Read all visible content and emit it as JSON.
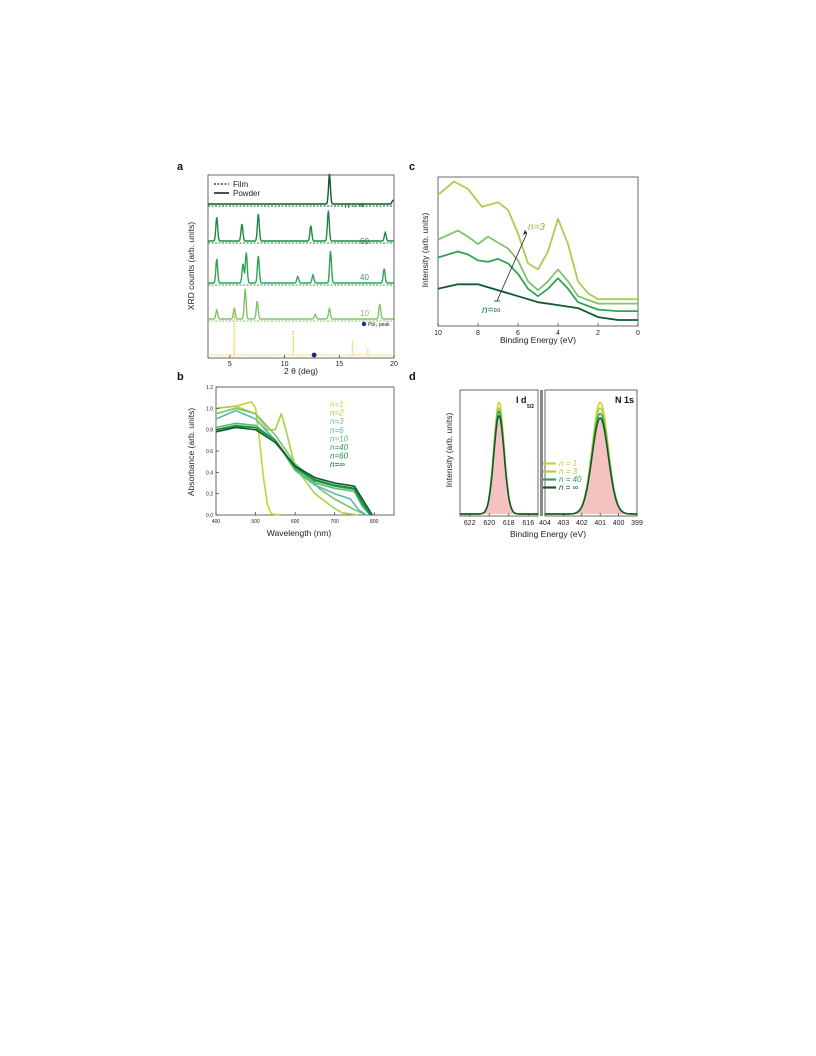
{
  "panels": {
    "a": "a",
    "b": "b",
    "c": "c",
    "d": "d"
  },
  "colors": {
    "n1": "#c6d42a",
    "n2": "#a9cf4a",
    "n3": "#7fc36a",
    "n6": "#58b8b0",
    "n10": "#5bbf6a",
    "n40": "#2fa453",
    "n60": "#1e8a45",
    "ninf": "#0e5a2c",
    "pbi2": "#1a2a8a",
    "ref": "#f0d23a",
    "fill": "#f3b6b6"
  },
  "chart_data": [
    {
      "id": "a",
      "type": "line",
      "xlabel": "2 θ (deg)",
      "ylabel": "XRD counts (arb. units)",
      "xlim": [
        3,
        20
      ],
      "xticks": [
        "5",
        "10",
        "15",
        "20"
      ],
      "legend": {
        "film": "Film",
        "powder": "Powder",
        "placement": "top-left"
      },
      "pbi2_label": "PbI₂ peak",
      "series": [
        {
          "name": "n = ∞",
          "peaks": [
            [
              14.1,
              1.0
            ],
            [
              19.9,
              0.12
            ]
          ]
        },
        {
          "name": "60",
          "peaks": [
            [
              3.8,
              0.7
            ],
            [
              6.1,
              0.5
            ],
            [
              7.6,
              0.8
            ],
            [
              12.4,
              0.45
            ],
            [
              14.0,
              0.9
            ],
            [
              19.2,
              0.25
            ]
          ]
        },
        {
          "name": "40",
          "peaks": [
            [
              3.8,
              0.75
            ],
            [
              6.2,
              0.6
            ],
            [
              6.5,
              0.95
            ],
            [
              7.6,
              0.85
            ],
            [
              11.2,
              0.2
            ],
            [
              12.6,
              0.25
            ],
            [
              14.2,
              1.0
            ],
            [
              19.1,
              0.45
            ]
          ]
        },
        {
          "name": "10",
          "peaks": [
            [
              3.8,
              0.3
            ],
            [
              5.4,
              0.35
            ],
            [
              6.4,
              1.0
            ],
            [
              7.5,
              0.6
            ],
            [
              12.8,
              0.15
            ],
            [
              14.1,
              0.35
            ],
            [
              18.7,
              0.5
            ]
          ]
        }
      ],
      "pbi2_peak_x": 12.7,
      "reference_peaks": [
        [
          5.4,
          0.7
        ],
        [
          10.8,
          0.4
        ],
        [
          16.2,
          0.25
        ],
        [
          17.6,
          0.1
        ]
      ]
    },
    {
      "id": "b",
      "type": "line",
      "xlabel": "Wavelength (nm)",
      "ylabel": "Absorbance (arb. units)",
      "xlim": [
        400,
        850
      ],
      "ylim": [
        0,
        1.2
      ],
      "xticks": [
        "400",
        "500",
        "600",
        "700",
        "800"
      ],
      "yticks": [
        "0.0",
        "0.2",
        "0.4",
        "0.6",
        "0.8",
        "1.0",
        "1.2"
      ],
      "series": [
        {
          "name": "n=1",
          "color_key": "n1",
          "x": [
            400,
            450,
            490,
            500,
            510,
            520,
            530,
            540,
            560
          ],
          "y": [
            1.0,
            1.02,
            1.06,
            1.0,
            0.7,
            0.35,
            0.1,
            0.01,
            0.0
          ]
        },
        {
          "name": "n=2",
          "color_key": "n2",
          "x": [
            400,
            450,
            500,
            530,
            550,
            565,
            580,
            600,
            650,
            700,
            720,
            740,
            760
          ],
          "y": [
            1.0,
            1.02,
            0.95,
            0.8,
            0.8,
            0.95,
            0.75,
            0.45,
            0.2,
            0.06,
            0.02,
            0.01,
            0.0
          ]
        },
        {
          "name": "n=3",
          "color_key": "n3",
          "x": [
            400,
            450,
            500,
            550,
            600,
            640,
            660,
            700,
            750,
            780
          ],
          "y": [
            0.95,
            1.0,
            0.95,
            0.75,
            0.48,
            0.35,
            0.25,
            0.15,
            0.05,
            0.0
          ]
        },
        {
          "name": "n=6",
          "color_key": "n6",
          "x": [
            400,
            450,
            500,
            550,
            600,
            650,
            700,
            740,
            760,
            780
          ],
          "y": [
            0.9,
            0.98,
            0.9,
            0.7,
            0.42,
            0.28,
            0.2,
            0.15,
            0.05,
            0.0
          ]
        },
        {
          "name": "n=10",
          "color_key": "n10",
          "x": [
            400,
            450,
            500,
            550,
            600,
            650,
            700,
            750,
            770,
            790
          ],
          "y": [
            0.82,
            0.86,
            0.84,
            0.7,
            0.42,
            0.3,
            0.25,
            0.22,
            0.08,
            0.0
          ]
        },
        {
          "name": "n=40",
          "color_key": "n40",
          "x": [
            400,
            450,
            500,
            550,
            600,
            650,
            700,
            750,
            770,
            790
          ],
          "y": [
            0.8,
            0.84,
            0.82,
            0.7,
            0.44,
            0.32,
            0.27,
            0.24,
            0.1,
            0.0
          ]
        },
        {
          "name": "n=60",
          "color_key": "n60",
          "x": [
            400,
            450,
            500,
            550,
            600,
            650,
            700,
            750,
            770,
            790
          ],
          "y": [
            0.8,
            0.83,
            0.82,
            0.7,
            0.45,
            0.33,
            0.28,
            0.25,
            0.12,
            0.0
          ]
        },
        {
          "name": "n=∞",
          "color_key": "ninf",
          "x": [
            400,
            450,
            500,
            550,
            600,
            650,
            700,
            750,
            770,
            795
          ],
          "y": [
            0.78,
            0.82,
            0.8,
            0.68,
            0.46,
            0.35,
            0.3,
            0.27,
            0.15,
            0.0
          ]
        }
      ]
    },
    {
      "id": "c",
      "type": "line",
      "xlabel": "Binding Energy (eV)",
      "ylabel": "Intensity (arb. units)",
      "xlim": [
        10,
        0
      ],
      "xticks": [
        "10",
        "8",
        "6",
        "4",
        "2",
        "0"
      ],
      "annotation_top": "n=3",
      "annotation_bottom": "n=∞",
      "series": [
        {
          "name": "n=3",
          "color_key": "n2",
          "x": [
            10,
            9.2,
            8.5,
            7.8,
            7,
            6.5,
            6,
            5.5,
            5,
            4.5,
            4,
            3.5,
            3,
            2.5,
            2,
            1,
            0
          ],
          "y": [
            0.88,
            0.97,
            0.92,
            0.8,
            0.83,
            0.78,
            0.62,
            0.42,
            0.38,
            0.5,
            0.72,
            0.55,
            0.3,
            0.22,
            0.18,
            0.18,
            0.18
          ]
        },
        {
          "name": "n=40",
          "color_key": "n3",
          "x": [
            10,
            9,
            8.5,
            8,
            7.5,
            7,
            6.5,
            6,
            5.5,
            5,
            4.5,
            4,
            3.5,
            3,
            2,
            1,
            0
          ],
          "y": [
            0.58,
            0.64,
            0.6,
            0.55,
            0.6,
            0.56,
            0.52,
            0.44,
            0.3,
            0.24,
            0.3,
            0.38,
            0.3,
            0.2,
            0.15,
            0.15,
            0.15
          ]
        },
        {
          "name": "n=10",
          "color_key": "n40",
          "x": [
            10,
            9,
            8.5,
            8,
            7.5,
            7,
            6.5,
            6,
            5.5,
            5,
            4.5,
            4,
            3.5,
            3,
            2,
            1,
            0
          ],
          "y": [
            0.46,
            0.5,
            0.48,
            0.44,
            0.43,
            0.45,
            0.42,
            0.35,
            0.25,
            0.2,
            0.25,
            0.32,
            0.25,
            0.16,
            0.11,
            0.1,
            0.1
          ]
        },
        {
          "name": "n=∞",
          "color_key": "ninf",
          "x": [
            10,
            9,
            8,
            7,
            6,
            5,
            4,
            3,
            2,
            1,
            0
          ],
          "y": [
            0.25,
            0.28,
            0.28,
            0.24,
            0.2,
            0.16,
            0.14,
            0.12,
            0.06,
            0.04,
            0.04
          ]
        }
      ]
    },
    {
      "id": "d",
      "type": "line",
      "xlabel": "Binding Energy (eV)",
      "ylabel": "Intensity (arb. units)",
      "left_label": "I d",
      "left_sub": "5/2",
      "right_label": "N 1s",
      "left_xlim": [
        623,
        615
      ],
      "left_xticks": [
        "622",
        "620",
        "618",
        "616"
      ],
      "right_xlim": [
        404,
        399
      ],
      "right_xticks": [
        "404",
        "403",
        "402",
        "401",
        "400",
        "399"
      ],
      "legend": [
        "n = 1",
        "n = 3",
        "n = 40",
        "n = ∞"
      ],
      "series": [
        {
          "name": "n = 1",
          "color_key": "n1",
          "left_center": 619.0,
          "left_height": 1.0,
          "right_center": 401.0,
          "right_height": 1.0
        },
        {
          "name": "n = 3",
          "color_key": "n2",
          "left_center": 619.0,
          "left_height": 0.95,
          "right_center": 401.0,
          "right_height": 0.95
        },
        {
          "name": "n = 40",
          "color_key": "n40",
          "left_center": 619.0,
          "left_height": 0.92,
          "right_center": 401.0,
          "right_height": 0.9
        },
        {
          "name": "n = ∞",
          "color_key": "ninf",
          "left_center": 619.0,
          "left_height": 0.88,
          "right_center": 401.0,
          "right_height": 0.86
        }
      ]
    }
  ]
}
